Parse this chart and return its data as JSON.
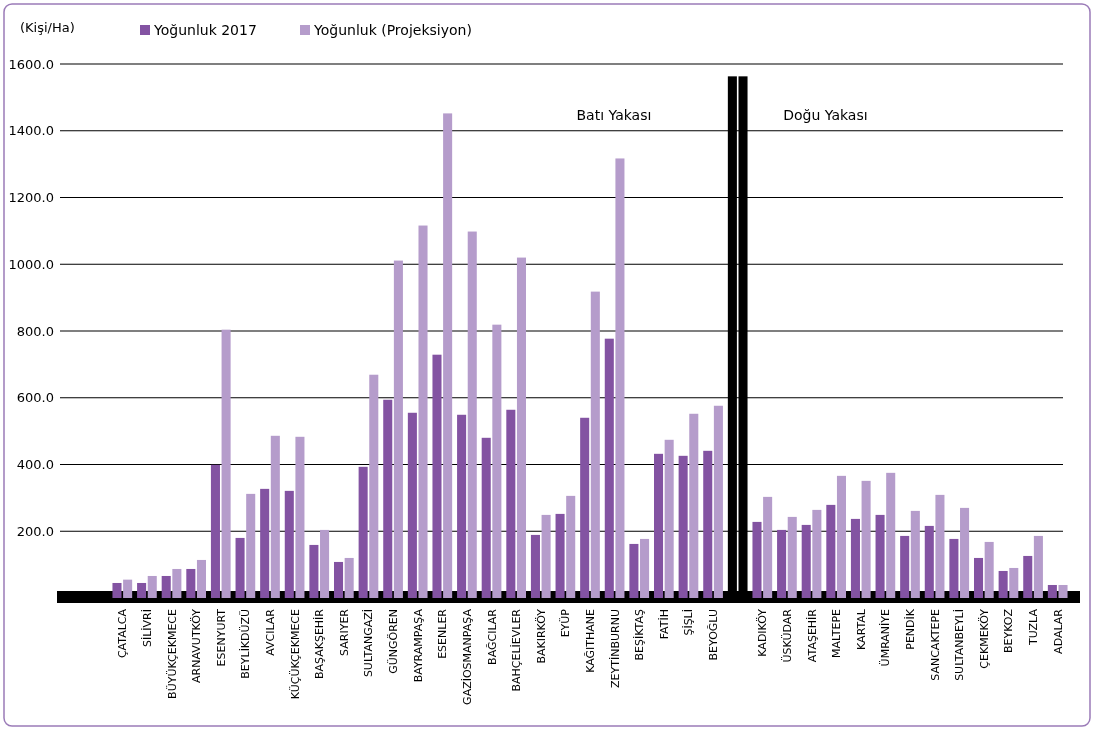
{
  "chart_data": {
    "type": "bar",
    "ylabel": "(Kişi/Ha)",
    "categories": [
      "ÇATALCA",
      "SİLİVRİ",
      "BÜYÜKÇEKMECE",
      "ARNAVUTKÖY",
      "ESENYURT",
      "BEYLİKDÜZÜ",
      "AVCILAR",
      "KÜÇÜKÇEKMECE",
      "BAŞAKŞEHİR",
      "SARIYER",
      "SULTANGAZİ",
      "GÜNGÖREN",
      "BAYRAMPAŞA",
      "ESENLER",
      "GAZİOSMANPAŞA",
      "BAĞCILAR",
      "BAHÇELİEVLER",
      "BAKIRKÖY",
      "EYÜP",
      "KAĞITHANE",
      "ZEYTİNBURNU",
      "BEŞİKTAŞ",
      "FATİH",
      "ŞİŞLİ",
      "BEYOĞLU",
      null,
      "KADIKÖY",
      "ÜSKÜDAR",
      "ATAŞEHİR",
      "MALTEPE",
      "KARTAL",
      "ÜMRANİYE",
      "PENDİK",
      "SANCAKTEPE",
      "SULTANBEYLİ",
      "ÇEKMEKÖY",
      "BEYKOZ",
      "TUZLA",
      "ADALAR"
    ],
    "series": [
      {
        "name": "Yoğunluk 2017",
        "color": "#8353a2",
        "colors": [
          "#8353a2",
          "#8353a2",
          "#8353a2",
          "#8353a2",
          "#8353a2",
          "#8353a2",
          "#8353a2",
          "#8353a2",
          "#8353a2",
          "#8353a2",
          "#8353a2",
          "#8353a2",
          "#8353a2",
          "#8353a2",
          "#8353a2",
          "#8353a2",
          "#8353a2",
          "#8353a2",
          "#8353a2",
          "#8353a2",
          "#8353a2",
          "#8353a2",
          "#8353a2",
          "#8353a2",
          "#8353a2",
          "#000000",
          "#8353a2",
          "#8353a2",
          "#8353a2",
          "#8353a2",
          "#8353a2",
          "#8353a2",
          "#8353a2",
          "#8353a2",
          "#8353a2",
          "#8353a2",
          "#8353a2",
          "#8353a2",
          "#8353a2"
        ],
        "values": [
          45,
          45,
          66,
          87,
          399,
          180,
          327,
          321,
          159,
          108,
          393,
          594,
          555,
          729,
          549,
          480,
          564,
          189,
          252,
          540,
          777,
          162,
          432,
          426,
          441,
          1563,
          228,
          204,
          219,
          279,
          237,
          249,
          186,
          216,
          177,
          120,
          81,
          126,
          39
        ]
      },
      {
        "name": "Yoğunluk (Projeksiyon)",
        "color": "#b59ccb",
        "colors": [
          "#b59ccb",
          "#b59ccb",
          "#b59ccb",
          "#b59ccb",
          "#b59ccb",
          "#b59ccb",
          "#b59ccb",
          "#b59ccb",
          "#b59ccb",
          "#b59ccb",
          "#b59ccb",
          "#b59ccb",
          "#b59ccb",
          "#b59ccb",
          "#b59ccb",
          "#b59ccb",
          "#b59ccb",
          "#b59ccb",
          "#b59ccb",
          "#b59ccb",
          "#b59ccb",
          "#b59ccb",
          "#b59ccb",
          "#b59ccb",
          "#b59ccb",
          "#000000",
          "#b59ccb",
          "#b59ccb",
          "#b59ccb",
          "#b59ccb",
          "#b59ccb",
          "#b59ccb",
          "#b59ccb",
          "#b59ccb",
          "#b59ccb",
          "#b59ccb",
          "#b59ccb",
          "#b59ccb",
          "#b59ccb"
        ],
        "values": [
          55,
          66,
          87,
          114,
          804,
          312,
          486,
          483,
          204,
          120,
          669,
          1011,
          1116,
          1452,
          1098,
          819,
          1020,
          249,
          306,
          918,
          1317,
          177,
          474,
          552,
          576,
          1563,
          303,
          243,
          264,
          366,
          351,
          375,
          261,
          309,
          270,
          168,
          90,
          186,
          39
        ]
      }
    ],
    "ylim": [
      0,
      1600
    ],
    "yticks": [
      {
        "value": 200,
        "label": "200.0"
      },
      {
        "value": 400,
        "label": "400.0"
      },
      {
        "value": 600,
        "label": "600.0"
      },
      {
        "value": 800,
        "label": "800.0"
      },
      {
        "value": 1000,
        "label": "1000.0"
      },
      {
        "value": 1200,
        "label": "1200.0"
      },
      {
        "value": 1400,
        "label": "1400.0"
      },
      {
        "value": 1600,
        "label": "1600.0"
      }
    ],
    "grid": "y",
    "legend": "top left",
    "annotations": [
      "Batı Yakası",
      "Doğu Yakası"
    ]
  }
}
